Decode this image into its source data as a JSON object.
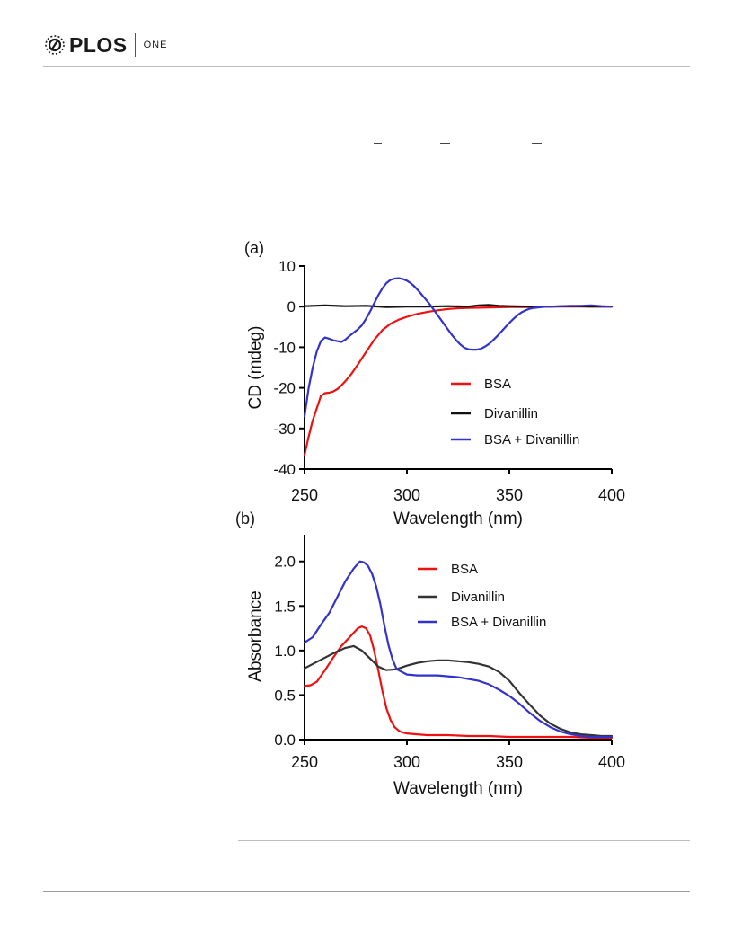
{
  "journal": {
    "name": "PLOS",
    "section": "ONE"
  },
  "chart_data": [
    {
      "panel_label": "(a)",
      "type": "line",
      "xlabel": "Wavelength (nm)",
      "ylabel": "CD (mdeg)",
      "xlim": [
        250,
        400
      ],
      "ylim": [
        -40,
        10
      ],
      "x_ticks": [
        250,
        300,
        350,
        400
      ],
      "y_ticks": [
        10,
        0,
        -10,
        -20,
        -30,
        -40
      ],
      "grid": false,
      "legend_position": "bottom-right",
      "series": [
        {
          "name": "BSA",
          "color": "#ee1111",
          "x": [
            250,
            252,
            254,
            256,
            258,
            260,
            262,
            264,
            266,
            268,
            270,
            273,
            276,
            280,
            284,
            288,
            292,
            296,
            300,
            305,
            310,
            315,
            320,
            325,
            330,
            340,
            350,
            360,
            370,
            380,
            390,
            400
          ],
          "y": [
            -36.5,
            -32,
            -28,
            -25,
            -22,
            -21.3,
            -21.2,
            -20.9,
            -20.3,
            -19.4,
            -18.3,
            -16.5,
            -14.3,
            -11.2,
            -8.2,
            -5.8,
            -4.2,
            -3.2,
            -2.5,
            -1.8,
            -1.3,
            -0.9,
            -0.6,
            -0.4,
            -0.3,
            -0.2,
            -0.1,
            -0.1,
            0,
            0,
            0,
            0
          ]
        },
        {
          "name": "Divanillin",
          "color": "#111111",
          "x": [
            250,
            260,
            270,
            280,
            290,
            300,
            310,
            320,
            330,
            335,
            340,
            345,
            350,
            360,
            370,
            380,
            390,
            400
          ],
          "y": [
            0.1,
            0.3,
            0.1,
            0.2,
            -0.1,
            0,
            0,
            0.1,
            0,
            0.3,
            0.4,
            0.2,
            0.1,
            0,
            0,
            0.1,
            0,
            0
          ]
        },
        {
          "name": "BSA + Divanillin",
          "color": "#3333cc",
          "x": [
            250,
            252,
            254,
            256,
            258,
            260,
            262,
            264,
            266,
            268,
            270,
            272,
            274,
            276,
            278,
            280,
            282,
            284,
            286,
            288,
            290,
            292,
            294,
            296,
            298,
            300,
            302,
            304,
            306,
            308,
            310,
            312,
            314,
            316,
            318,
            320,
            322,
            324,
            326,
            328,
            330,
            332,
            334,
            336,
            338,
            340,
            342,
            344,
            346,
            348,
            350,
            352,
            354,
            356,
            358,
            360,
            362,
            364,
            366,
            368,
            370,
            375,
            380,
            385,
            390,
            395,
            400
          ],
          "y": [
            -27,
            -20,
            -15,
            -11,
            -8.5,
            -7.6,
            -7.9,
            -8.3,
            -8.5,
            -8.7,
            -8.1,
            -7.2,
            -6.4,
            -5.6,
            -4.6,
            -3.0,
            -1.2,
            0.8,
            2.8,
            4.5,
            5.8,
            6.6,
            6.9,
            7.0,
            6.8,
            6.4,
            5.7,
            4.8,
            3.7,
            2.5,
            1.3,
            0,
            -1.4,
            -2.8,
            -4.2,
            -5.6,
            -7.0,
            -8.2,
            -9.3,
            -10.1,
            -10.5,
            -10.6,
            -10.6,
            -10.4,
            -9.9,
            -9.2,
            -8.3,
            -7.3,
            -6.2,
            -5.1,
            -4.0,
            -3.0,
            -2.1,
            -1.4,
            -0.9,
            -0.5,
            -0.3,
            -0.2,
            -0.1,
            0,
            0,
            0.1,
            0.2,
            0.2,
            0.3,
            0.1,
            0
          ]
        }
      ]
    },
    {
      "panel_label": "(b)",
      "type": "line",
      "xlabel": "Wavelength (nm)",
      "ylabel": "Absorbance",
      "xlim": [
        250,
        400
      ],
      "ylim": [
        0,
        2.3
      ],
      "x_ticks": [
        250,
        300,
        350,
        400
      ],
      "y_ticks": [
        "0.0",
        "0.5",
        "1.0",
        "1.5",
        "2.0"
      ],
      "grid": false,
      "legend_position": "top-right",
      "series": [
        {
          "name": "BSA",
          "color": "#ee1111",
          "x": [
            250,
            253,
            256,
            260,
            264,
            268,
            272,
            276,
            278,
            280,
            282,
            284,
            286,
            288,
            290,
            292,
            294,
            296,
            298,
            300,
            305,
            310,
            320,
            330,
            340,
            350,
            360,
            370,
            380,
            390,
            400
          ],
          "y": [
            0.6,
            0.61,
            0.65,
            0.78,
            0.92,
            1.05,
            1.15,
            1.25,
            1.27,
            1.25,
            1.17,
            1.0,
            0.78,
            0.55,
            0.35,
            0.22,
            0.14,
            0.1,
            0.08,
            0.07,
            0.06,
            0.05,
            0.05,
            0.04,
            0.04,
            0.03,
            0.03,
            0.03,
            0.03,
            0.02,
            0.02
          ]
        },
        {
          "name": "Divanillin",
          "color": "#333333",
          "x": [
            250,
            255,
            260,
            265,
            270,
            274,
            278,
            282,
            286,
            290,
            295,
            300,
            305,
            310,
            315,
            320,
            325,
            330,
            335,
            340,
            345,
            350,
            355,
            360,
            365,
            370,
            375,
            380,
            385,
            390,
            395,
            400
          ],
          "y": [
            0.8,
            0.86,
            0.92,
            0.98,
            1.03,
            1.05,
            1.0,
            0.91,
            0.82,
            0.78,
            0.79,
            0.83,
            0.86,
            0.88,
            0.89,
            0.89,
            0.88,
            0.87,
            0.85,
            0.82,
            0.76,
            0.66,
            0.52,
            0.39,
            0.27,
            0.18,
            0.12,
            0.08,
            0.06,
            0.05,
            0.04,
            0.04
          ]
        },
        {
          "name": "BSA + Divanillin",
          "color": "#3333cc",
          "x": [
            250,
            254,
            258,
            262,
            266,
            270,
            274,
            277,
            279,
            281,
            283,
            285,
            287,
            289,
            291,
            293,
            295,
            300,
            305,
            310,
            315,
            320,
            325,
            330,
            335,
            340,
            345,
            350,
            355,
            360,
            365,
            370,
            375,
            380,
            385,
            390,
            395,
            400
          ],
          "y": [
            1.09,
            1.15,
            1.29,
            1.42,
            1.6,
            1.78,
            1.92,
            2.0,
            1.99,
            1.95,
            1.86,
            1.72,
            1.52,
            1.28,
            1.06,
            0.9,
            0.79,
            0.73,
            0.72,
            0.72,
            0.72,
            0.71,
            0.7,
            0.68,
            0.66,
            0.62,
            0.56,
            0.49,
            0.4,
            0.3,
            0.21,
            0.14,
            0.09,
            0.06,
            0.04,
            0.03,
            0.03,
            0.03
          ]
        }
      ]
    }
  ]
}
